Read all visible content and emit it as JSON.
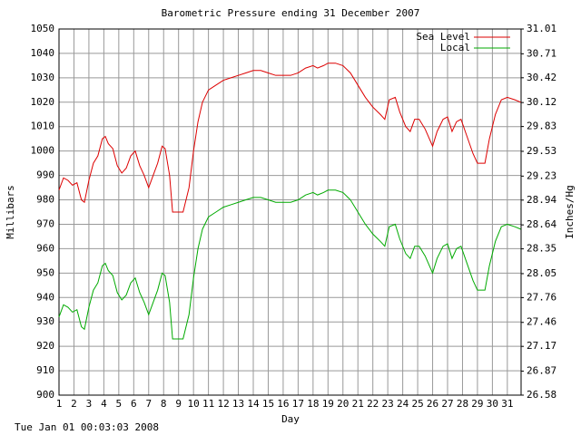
{
  "chart_data": {
    "type": "line",
    "title": "Barometric Pressure ending 31 December 2007",
    "xlabel": "Day",
    "ylabel": "Millibars",
    "y2label": "Inches/Hg",
    "footer": "Tue Jan 01 00:03:03 2008",
    "legend": "upper right",
    "grid": true,
    "xlim": [
      1,
      31.92
    ],
    "xticks": [
      1,
      2,
      3,
      4,
      5,
      6,
      7,
      8,
      9,
      10,
      11,
      12,
      13,
      14,
      15,
      16,
      17,
      18,
      19,
      20,
      21,
      22,
      23,
      24,
      25,
      26,
      27,
      28,
      29,
      30,
      31
    ],
    "ylim": [
      900,
      1050
    ],
    "yticks": [
      900,
      910,
      920,
      930,
      940,
      950,
      960,
      970,
      980,
      990,
      1000,
      1010,
      1020,
      1030,
      1040,
      1050
    ],
    "y2lim": [
      26.58,
      31.01
    ],
    "y2ticks": [
      26.58,
      26.87,
      27.17,
      27.46,
      27.76,
      28.05,
      28.35,
      28.64,
      28.94,
      29.23,
      29.53,
      29.83,
      30.12,
      30.42,
      30.71,
      31.01
    ],
    "x": [
      1.0,
      1.3,
      1.6,
      1.9,
      2.2,
      2.5,
      2.7,
      3.0,
      3.3,
      3.6,
      3.9,
      4.1,
      4.3,
      4.6,
      4.9,
      5.2,
      5.5,
      5.8,
      6.1,
      6.4,
      6.7,
      7.0,
      7.3,
      7.6,
      7.9,
      8.1,
      8.4,
      8.6,
      9.0,
      9.3,
      9.7,
      10.0,
      10.3,
      10.6,
      11.0,
      11.5,
      12.0,
      12.5,
      13.0,
      13.5,
      14.0,
      14.5,
      15.0,
      15.5,
      16.0,
      16.5,
      17.0,
      17.5,
      18.0,
      18.3,
      18.7,
      19.0,
      19.5,
      20.0,
      20.5,
      21.0,
      21.5,
      22.0,
      22.5,
      22.8,
      23.1,
      23.5,
      23.8,
      24.2,
      24.5,
      24.8,
      25.1,
      25.5,
      26.0,
      26.3,
      26.7,
      27.0,
      27.3,
      27.6,
      27.9,
      28.3,
      28.7,
      29.0,
      29.5,
      29.8,
      30.2,
      30.6,
      31.0,
      31.5,
      31.9
    ],
    "series": [
      {
        "name": "Sea Level",
        "color": "#dd0000",
        "values": [
          984,
          989,
          988,
          986,
          987,
          980,
          979,
          988,
          995,
          998,
          1005,
          1006,
          1003,
          1001,
          994,
          991,
          993,
          998,
          1000,
          994,
          990,
          985,
          990,
          995,
          1002,
          1001,
          990,
          975,
          975,
          975,
          985,
          1000,
          1012,
          1020,
          1025,
          1027,
          1029,
          1030,
          1031,
          1032,
          1033,
          1033,
          1032,
          1031,
          1031,
          1031,
          1032,
          1034,
          1035,
          1034,
          1035,
          1036,
          1036,
          1035,
          1032,
          1027,
          1022,
          1018,
          1015,
          1013,
          1021,
          1022,
          1016,
          1010,
          1008,
          1013,
          1013,
          1009,
          1002,
          1008,
          1013,
          1014,
          1008,
          1012,
          1013,
          1006,
          999,
          995,
          995,
          1005,
          1015,
          1021,
          1022,
          1021,
          1020
        ]
      },
      {
        "name": "Local",
        "color": "#00aa00",
        "values": [
          932,
          937,
          936,
          934,
          935,
          928,
          927,
          936,
          943,
          946,
          953,
          954,
          951,
          949,
          942,
          939,
          941,
          946,
          948,
          942,
          938,
          933,
          938,
          943,
          950,
          949,
          938,
          923,
          923,
          923,
          933,
          948,
          960,
          968,
          973,
          975,
          977,
          978,
          979,
          980,
          981,
          981,
          980,
          979,
          979,
          979,
          980,
          982,
          983,
          982,
          983,
          984,
          984,
          983,
          980,
          975,
          970,
          966,
          963,
          961,
          969,
          970,
          964,
          958,
          956,
          961,
          961,
          957,
          950,
          956,
          961,
          962,
          956,
          960,
          961,
          954,
          947,
          943,
          943,
          953,
          963,
          969,
          970,
          969,
          968
        ]
      }
    ]
  }
}
